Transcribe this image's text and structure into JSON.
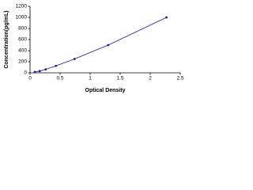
{
  "chart_data": {
    "type": "scatter",
    "xlabel": "Optical Density",
    "ylabel": "Concentration(pg/mL)",
    "x": [
      0.08,
      0.16,
      0.26,
      0.43,
      0.74,
      1.3,
      2.27
    ],
    "y": [
      15.6,
      31.25,
      62.5,
      125,
      250,
      500,
      1000
    ],
    "color": "#1a1a8c",
    "line": true,
    "xlim": [
      0,
      2.5
    ],
    "xticks": [
      0,
      0.5,
      1,
      1.5,
      2,
      2.5
    ],
    "ylim": [
      0,
      1200
    ],
    "yticks": [
      0,
      200,
      400,
      600,
      800,
      1000,
      1200
    ]
  }
}
